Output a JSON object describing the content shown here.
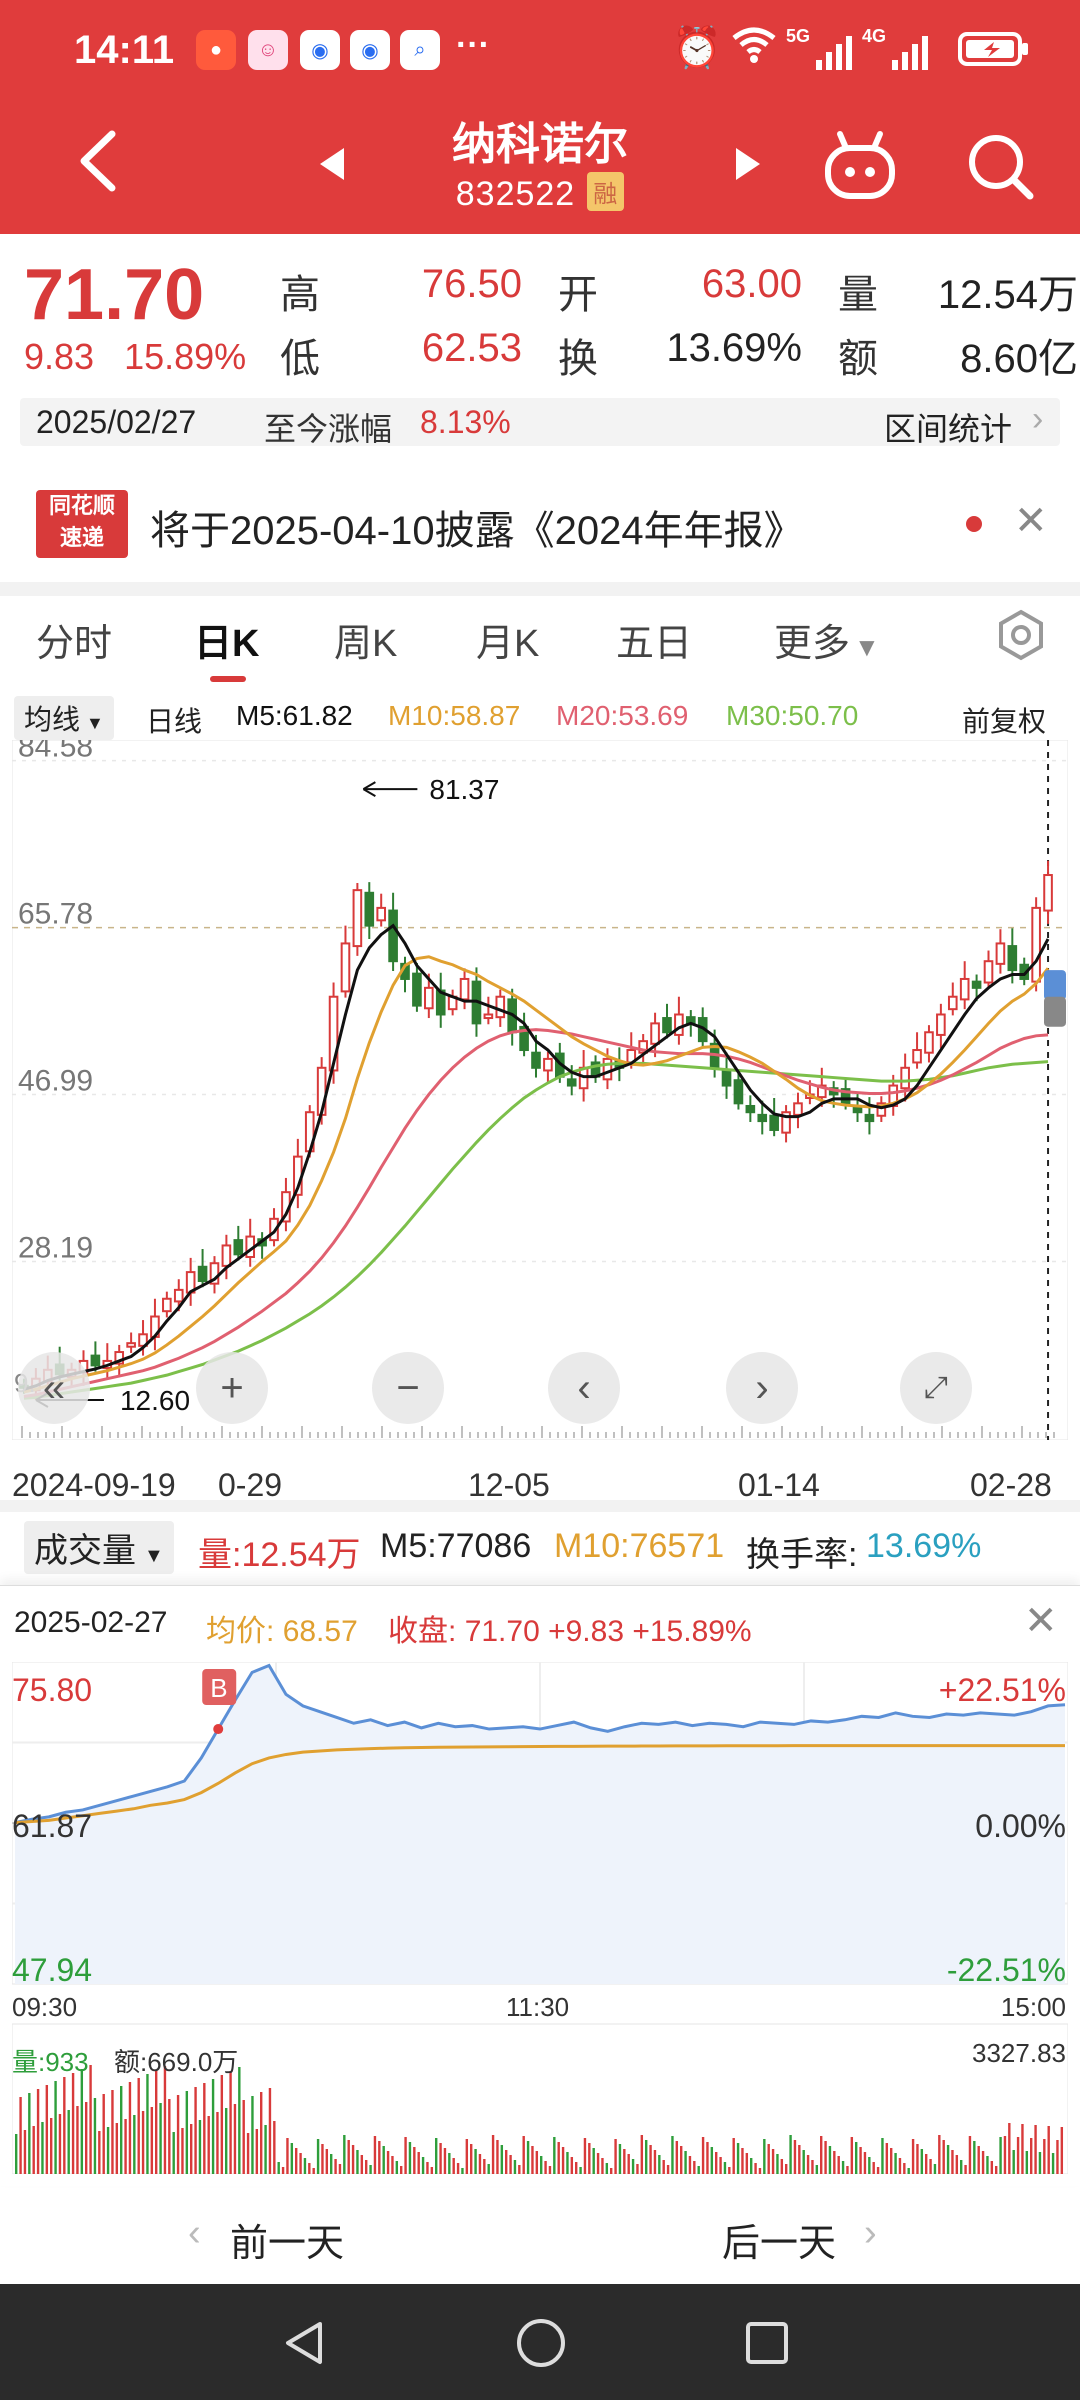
{
  "status_bar": {
    "time": "14:11",
    "more": "···",
    "network": "5G 4G",
    "icons": [
      "alarm-icon",
      "wifi-icon",
      "signal-icon",
      "battery-icon"
    ]
  },
  "header": {
    "stock_name": "纳科诺尔",
    "stock_code": "832522",
    "badge": "融",
    "icons": [
      "back-icon",
      "prev-stock-icon",
      "next-stock-icon",
      "robot-icon",
      "search-icon"
    ]
  },
  "quote": {
    "price": "71.70",
    "change": "9.83",
    "change_pct": "15.89%",
    "high_label": "高",
    "high": "76.50",
    "open_label": "开",
    "open": "63.00",
    "volume_label": "量",
    "volume": "12.54万",
    "low_label": "低",
    "low": "62.53",
    "turnover_label": "换",
    "turnover": "13.69%",
    "amount_label": "额",
    "amount": "8.60亿"
  },
  "date_bar": {
    "date": "2025/02/27",
    "since_label": "至今涨幅",
    "since_value": "8.13%",
    "range_stats": "区间统计"
  },
  "notice": {
    "logo_line1": "同花顺",
    "logo_line2": "速递",
    "text": "将于2025-04-10披露《2024年年报》"
  },
  "tabs": [
    "分时",
    "日K",
    "周K",
    "月K",
    "五日",
    "更多"
  ],
  "active_tab": "日K",
  "ma_row": {
    "selector": "均线",
    "period": "日线",
    "m5": "M5:61.82",
    "m10": "M10:58.87",
    "m20": "M20:53.69",
    "m30": "M30:50.70",
    "adjust": "前复权"
  },
  "colors": {
    "up": "#d83a3a",
    "down": "#2e7d32",
    "m5": "#111111",
    "m10": "#e0a030",
    "m20": "#e06070",
    "m30": "#7cbf4a",
    "header": "#e03c3c"
  },
  "chart_data": {
    "type": "candlestick",
    "y_ticks": [
      "84.58",
      "65.78",
      "46.99",
      "28.19"
    ],
    "ylim": [
      9.0,
      86.0
    ],
    "high_marker": "81.37",
    "low_marker": "12.60",
    "last_label": "9.",
    "x_labels": [
      "2024-09-19",
      "0-29",
      "12-05",
      "01-14",
      "02-28"
    ],
    "closes": [
      14,
      15,
      16,
      15.5,
      16,
      17,
      16.5,
      17,
      18,
      19,
      20,
      22,
      24,
      25,
      27,
      26,
      28,
      30,
      29,
      31,
      30,
      33,
      36,
      40,
      45,
      50,
      58,
      64,
      70,
      66,
      68,
      62,
      60,
      57,
      59,
      56,
      58,
      60,
      55,
      56,
      58,
      54,
      52,
      50,
      51,
      49,
      48,
      50,
      49,
      51,
      50,
      52,
      53,
      55,
      54,
      56,
      55,
      53,
      50,
      48,
      46,
      45,
      44,
      43,
      45,
      46,
      47,
      48,
      47,
      46,
      45,
      44,
      46,
      48,
      50,
      52,
      54,
      56,
      58,
      60,
      59,
      62,
      64,
      61,
      60,
      68,
      71.7
    ],
    "ma5": [
      13.8,
      14.2,
      14.8,
      15.2,
      15.5,
      15.8,
      16.1,
      16.5,
      17,
      17.5,
      18.5,
      19.8,
      21.5,
      23,
      24.8,
      25.5,
      26.2,
      27.5,
      28.5,
      29.5,
      30.5,
      31.5,
      33.5,
      36.5,
      40.5,
      45,
      50.5,
      56,
      61,
      63.5,
      65,
      66,
      64,
      61.5,
      60,
      58.5,
      58,
      57.5,
      57.5,
      57,
      56.5,
      56,
      55,
      53,
      52,
      50.5,
      49.5,
      49,
      49,
      49.5,
      50,
      50.5,
      51.5,
      52.5,
      53.5,
      54.5,
      55,
      54.5,
      53.5,
      51.5,
      49.5,
      47.5,
      46,
      44.8,
      44.5,
      44.5,
      45,
      46,
      46.5,
      46.5,
      46.5,
      45.8,
      45.5,
      45.8,
      46.5,
      48,
      50,
      52,
      54,
      56,
      57.8,
      59,
      60,
      60.5,
      60.5,
      62,
      64.5
    ],
    "ma10": [
      13.5,
      13.8,
      14.2,
      14.6,
      15,
      15.3,
      15.6,
      15.9,
      16.3,
      16.7,
      17.2,
      17.9,
      18.8,
      19.8,
      20.9,
      22,
      23.2,
      24.5,
      25.8,
      27,
      28.2,
      29.3,
      30.5,
      32.3,
      34.5,
      37.3,
      40.5,
      44.3,
      48.8,
      52.8,
      56.3,
      59.3,
      61.5,
      62.3,
      62.5,
      62,
      61.6,
      61,
      60.5,
      59.7,
      59,
      58.3,
      57.5,
      56.5,
      55.5,
      54.5,
      53.5,
      52.7,
      52,
      51.3,
      50.8,
      50.4,
      50.3,
      50.5,
      50.8,
      51.3,
      51.8,
      52.3,
      52.4,
      52.3,
      51.8,
      51.2,
      50.5,
      49.6,
      48.7,
      47.7,
      46.9,
      46.3,
      46,
      45.8,
      45.7,
      45.6,
      45.7,
      46,
      46.5,
      47.2,
      48.2,
      49.3,
      50.6,
      52,
      53.5,
      55,
      56.4,
      57.5,
      58.3,
      59.5,
      61.2
    ],
    "ma20": [
      13,
      13.2,
      13.5,
      13.8,
      14.1,
      14.4,
      14.7,
      15,
      15.3,
      15.6,
      15.9,
      16.3,
      16.8,
      17.3,
      17.9,
      18.5,
      19.2,
      20,
      20.8,
      21.7,
      22.6,
      23.6,
      24.6,
      25.8,
      27.1,
      28.6,
      30.3,
      32.2,
      34.3,
      36.5,
      38.8,
      41,
      43.2,
      45.2,
      47,
      48.6,
      50,
      51.2,
      52.2,
      53,
      53.6,
      54,
      54.2,
      54.3,
      54.2,
      54,
      53.8,
      53.5,
      53.2,
      52.9,
      52.6,
      52.3,
      52,
      51.8,
      51.7,
      51.6,
      51.6,
      51.6,
      51.5,
      51.3,
      51,
      50.6,
      50.1,
      49.6,
      49.1,
      48.6,
      48.2,
      47.8,
      47.5,
      47.3,
      47.2,
      47.1,
      47.1,
      47.2,
      47.4,
      47.7,
      48.1,
      48.6,
      49.2,
      49.9,
      50.6,
      51.4,
      52.2,
      52.8,
      53.3,
      53.6,
      53.7
    ],
    "ma30": [
      12.8,
      12.9,
      13.1,
      13.3,
      13.5,
      13.7,
      13.9,
      14.1,
      14.3,
      14.5,
      14.8,
      15.1,
      15.4,
      15.8,
      16.2,
      16.6,
      17.1,
      17.6,
      18.1,
      18.7,
      19.3,
      20,
      20.7,
      21.5,
      22.3,
      23.2,
      24.2,
      25.3,
      26.5,
      27.8,
      29.2,
      30.7,
      32.2,
      33.8,
      35.4,
      37,
      38.6,
      40.1,
      41.6,
      43,
      44.3,
      45.5,
      46.6,
      47.5,
      48.3,
      49,
      49.5,
      49.9,
      50.2,
      50.4,
      50.5,
      50.5,
      50.5,
      50.4,
      50.3,
      50.2,
      50.1,
      50,
      49.9,
      49.8,
      49.7,
      49.6,
      49.5,
      49.4,
      49.3,
      49.2,
      49.1,
      49,
      48.9,
      48.8,
      48.7,
      48.6,
      48.5,
      48.5,
      48.5,
      48.6,
      48.7,
      48.9,
      49.1,
      49.4,
      49.7,
      50,
      50.2,
      50.4,
      50.5,
      50.6,
      50.7
    ]
  },
  "chart_controls": [
    "collapse-icon",
    "zoom-in-icon",
    "zoom-out-icon",
    "left-icon",
    "right-icon",
    "fullscreen-icon"
  ],
  "volume_row": {
    "selector": "成交量",
    "vol": "量:12.54万",
    "m5": "M5:77086",
    "m10": "M10:76571",
    "turnover_label": "换手率:",
    "turnover_value": "13.69%"
  },
  "intraday": {
    "date": "2025-02-27",
    "avg_label": "均价:",
    "avg": "68.57",
    "close_label": "收盘:",
    "close": "71.70 +9.83 +15.89%",
    "y_top": "75.80",
    "y_mid": "61.87",
    "y_bottom": "47.94",
    "pct_top": "+22.51%",
    "pct_mid": "0.00%",
    "pct_bottom": "-22.51%",
    "t_start": "09:30",
    "t_mid": "11:30",
    "t_end": "15:00",
    "buy_marker": "B",
    "vol_label": "量:933",
    "amt_label": "额:669.0万",
    "vol_max": "3327.83",
    "price_series": [
      61.9,
      62.2,
      62.4,
      62.8,
      63.0,
      63.4,
      63.8,
      64.2,
      64.6,
      65.0,
      65.5,
      67.5,
      70.0,
      72.5,
      74.9,
      75.5,
      73.0,
      72.0,
      71.5,
      71.0,
      70.5,
      70.8,
      70.3,
      70.6,
      70.1,
      70.5,
      70.2,
      70.3,
      70.0,
      70.1,
      70.2,
      70.0,
      70.3,
      70.6,
      70.1,
      69.8,
      70.2,
      70.5,
      70.4,
      70.6,
      70.3,
      70.5,
      70.4,
      70.2,
      70.6,
      70.5,
      70.4,
      70.7,
      70.6,
      70.8,
      71.1,
      71.0,
      71.4,
      71.1,
      71.0,
      71.3,
      71.2,
      71.4,
      71.3,
      71.2,
      71.5,
      72.0,
      72.1
    ],
    "avg_series": [
      61.9,
      62.0,
      62.1,
      62.3,
      62.5,
      62.7,
      62.9,
      63.1,
      63.4,
      63.6,
      63.9,
      64.5,
      65.3,
      66.2,
      67.0,
      67.5,
      67.8,
      68.0,
      68.1,
      68.2,
      68.25,
      68.3,
      68.35,
      68.38,
      68.4,
      68.42,
      68.44,
      68.45,
      68.46,
      68.47,
      68.48,
      68.49,
      68.5,
      68.5,
      68.51,
      68.52,
      68.52,
      68.53,
      68.53,
      68.54,
      68.54,
      68.54,
      68.55,
      68.55,
      68.55,
      68.55,
      68.56,
      68.56,
      68.56,
      68.56,
      68.56,
      68.57,
      68.57,
      68.57,
      68.57,
      68.57,
      68.57,
      68.57,
      68.57,
      68.57,
      68.57,
      68.57,
      68.57
    ]
  },
  "bottom_nav": {
    "prev_day": "前一天",
    "next_day": "后一天"
  },
  "system_nav": [
    "back-nav-icon",
    "home-nav-icon",
    "recent-nav-icon"
  ]
}
